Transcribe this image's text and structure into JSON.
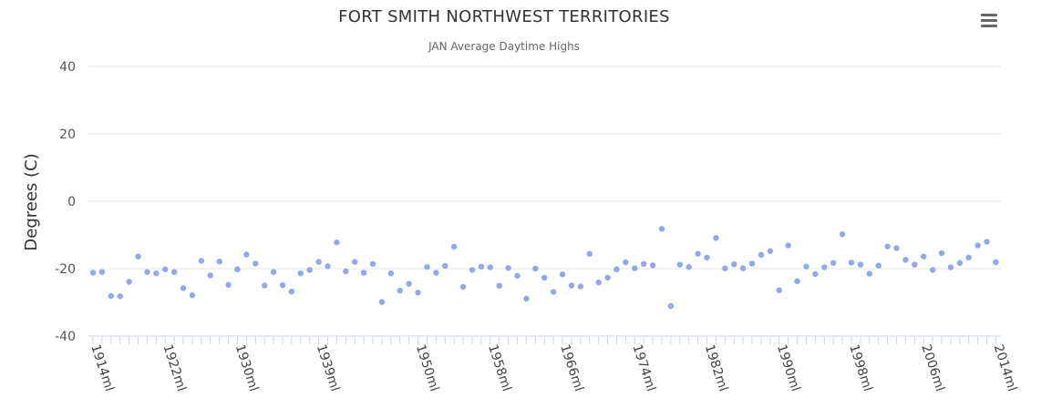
{
  "chart_data": {
    "type": "scatter",
    "title": "FORT SMITH NORTHWEST TERRITORIES",
    "subtitle": "JAN Average Daytime Highs",
    "ylabel": "Degrees (C)",
    "xlabel": "",
    "ylim": [
      -40,
      40
    ],
    "yticks": [
      40,
      20,
      0,
      -20,
      -40
    ],
    "xticks": [
      {
        "year": 1914,
        "label": "1914ml"
      },
      {
        "year": 1922,
        "label": "1922ml"
      },
      {
        "year": 1930,
        "label": "1930ml"
      },
      {
        "year": 1939,
        "label": "1939ml"
      },
      {
        "year": 1950,
        "label": "1950ml"
      },
      {
        "year": 1958,
        "label": "1958ml"
      },
      {
        "year": 1966,
        "label": "1966ml"
      },
      {
        "year": 1974,
        "label": "1974ml"
      },
      {
        "year": 1982,
        "label": "1982ml"
      },
      {
        "year": 1990,
        "label": "1990ml"
      },
      {
        "year": 1998,
        "label": "1998ml"
      },
      {
        "year": 2006,
        "label": "2006ml"
      },
      {
        "year": 2014,
        "label": "2014ml"
      }
    ],
    "grid": true,
    "point_color": "#92a8e8",
    "points": [
      {
        "x": 1914,
        "y": -21.2
      },
      {
        "x": 1915,
        "y": -21.0
      },
      {
        "x": 1916,
        "y": -28.1
      },
      {
        "x": 1917,
        "y": -28.2
      },
      {
        "x": 1918,
        "y": -23.9
      },
      {
        "x": 1919,
        "y": -16.4
      },
      {
        "x": 1920,
        "y": -21.0
      },
      {
        "x": 1921,
        "y": -21.4
      },
      {
        "x": 1922,
        "y": -20.2
      },
      {
        "x": 1923,
        "y": -21.0
      },
      {
        "x": 1924,
        "y": -25.8
      },
      {
        "x": 1925,
        "y": -27.9
      },
      {
        "x": 1926,
        "y": -17.7
      },
      {
        "x": 1927,
        "y": -22.0
      },
      {
        "x": 1928,
        "y": -17.9
      },
      {
        "x": 1929,
        "y": -24.8
      },
      {
        "x": 1930,
        "y": -20.2
      },
      {
        "x": 1931,
        "y": -15.8
      },
      {
        "x": 1932,
        "y": -18.5
      },
      {
        "x": 1933,
        "y": -25.0
      },
      {
        "x": 1934,
        "y": -21.0
      },
      {
        "x": 1935,
        "y": -24.9
      },
      {
        "x": 1936,
        "y": -26.8
      },
      {
        "x": 1937,
        "y": -21.4
      },
      {
        "x": 1938,
        "y": -20.4
      },
      {
        "x": 1939,
        "y": -18.0
      },
      {
        "x": 1940,
        "y": -19.3
      },
      {
        "x": 1941,
        "y": -12.2
      },
      {
        "x": 1942,
        "y": -20.8
      },
      {
        "x": 1943,
        "y": -18.0
      },
      {
        "x": 1944,
        "y": -21.2
      },
      {
        "x": 1945,
        "y": -18.6
      },
      {
        "x": 1946,
        "y": -29.9
      },
      {
        "x": 1947,
        "y": -21.4
      },
      {
        "x": 1948,
        "y": -26.5
      },
      {
        "x": 1949,
        "y": -24.5
      },
      {
        "x": 1950,
        "y": -27.1
      },
      {
        "x": 1951,
        "y": -19.5
      },
      {
        "x": 1952,
        "y": -21.2
      },
      {
        "x": 1953,
        "y": -19.2
      },
      {
        "x": 1954,
        "y": -13.5
      },
      {
        "x": 1955,
        "y": -25.4
      },
      {
        "x": 1956,
        "y": -20.4
      },
      {
        "x": 1957,
        "y": -19.4
      },
      {
        "x": 1958,
        "y": -19.6
      },
      {
        "x": 1959,
        "y": -25.1
      },
      {
        "x": 1960,
        "y": -19.8
      },
      {
        "x": 1961,
        "y": -22.1
      },
      {
        "x": 1962,
        "y": -28.9
      },
      {
        "x": 1963,
        "y": -20.0
      },
      {
        "x": 1964,
        "y": -22.7
      },
      {
        "x": 1965,
        "y": -26.9
      },
      {
        "x": 1966,
        "y": -21.7
      },
      {
        "x": 1967,
        "y": -25.0
      },
      {
        "x": 1968,
        "y": -25.3
      },
      {
        "x": 1969,
        "y": -15.6
      },
      {
        "x": 1970,
        "y": -24.1
      },
      {
        "x": 1971,
        "y": -22.7
      },
      {
        "x": 1972,
        "y": -20.2
      },
      {
        "x": 1973,
        "y": -18.1
      },
      {
        "x": 1974,
        "y": -19.9
      },
      {
        "x": 1975,
        "y": -18.6
      },
      {
        "x": 1976,
        "y": -19.0
      },
      {
        "x": 1977,
        "y": -8.2
      },
      {
        "x": 1978,
        "y": -31.1
      },
      {
        "x": 1979,
        "y": -18.8
      },
      {
        "x": 1980,
        "y": -19.5
      },
      {
        "x": 1981,
        "y": -15.6
      },
      {
        "x": 1982,
        "y": -16.7
      },
      {
        "x": 1983,
        "y": -10.9
      },
      {
        "x": 1984,
        "y": -19.9
      },
      {
        "x": 1985,
        "y": -18.7
      },
      {
        "x": 1986,
        "y": -19.9
      },
      {
        "x": 1987,
        "y": -18.5
      },
      {
        "x": 1988,
        "y": -15.9
      },
      {
        "x": 1989,
        "y": -14.8
      },
      {
        "x": 1990,
        "y": -26.4
      },
      {
        "x": 1991,
        "y": -13.1
      },
      {
        "x": 1992,
        "y": -23.7
      },
      {
        "x": 1993,
        "y": -19.4
      },
      {
        "x": 1994,
        "y": -21.6
      },
      {
        "x": 1995,
        "y": -19.6
      },
      {
        "x": 1996,
        "y": -18.3
      },
      {
        "x": 1997,
        "y": -9.8
      },
      {
        "x": 1998,
        "y": -18.2
      },
      {
        "x": 1999,
        "y": -18.8
      },
      {
        "x": 2000,
        "y": -21.5
      },
      {
        "x": 2001,
        "y": -19.1
      },
      {
        "x": 2002,
        "y": -13.4
      },
      {
        "x": 2003,
        "y": -13.9
      },
      {
        "x": 2004,
        "y": -17.4
      },
      {
        "x": 2005,
        "y": -18.8
      },
      {
        "x": 2006,
        "y": -16.4
      },
      {
        "x": 2007,
        "y": -20.4
      },
      {
        "x": 2008,
        "y": -15.4
      },
      {
        "x": 2009,
        "y": -19.6
      },
      {
        "x": 2010,
        "y": -18.3
      },
      {
        "x": 2011,
        "y": -16.7
      },
      {
        "x": 2012,
        "y": -13.1
      },
      {
        "x": 2013,
        "y": -12.0
      },
      {
        "x": 2014,
        "y": -18.1
      }
    ]
  }
}
